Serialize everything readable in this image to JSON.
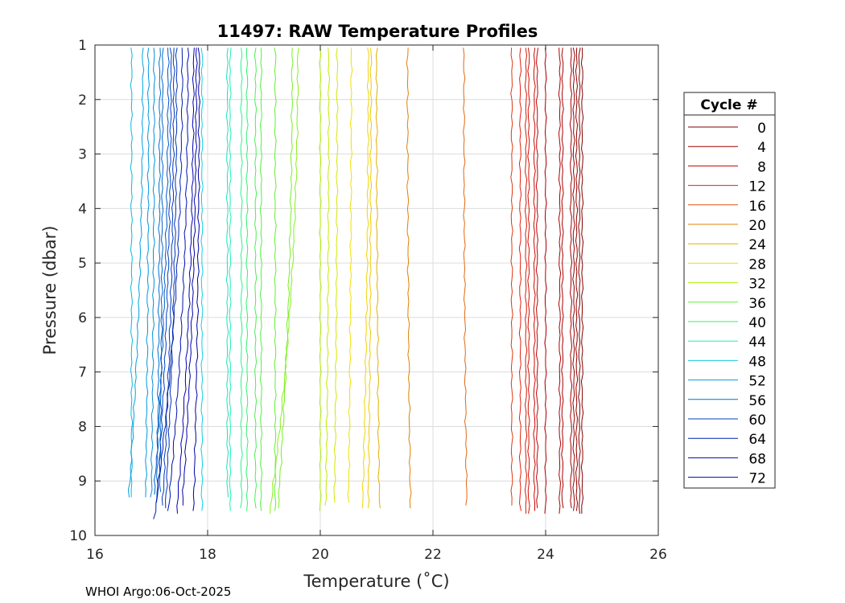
{
  "chart_data": {
    "type": "line",
    "title": "11497: RAW Temperature Profiles",
    "xlabel": "Temperature (˚C)",
    "ylabel": "Pressure (dbar)",
    "xlim": [
      16,
      26
    ],
    "ylim": [
      1,
      10
    ],
    "y_reversed": true,
    "grid": true,
    "xticks": [
      16,
      18,
      20,
      22,
      24,
      26
    ],
    "yticks": [
      1,
      2,
      3,
      4,
      5,
      6,
      7,
      8,
      9,
      10
    ],
    "legend": {
      "title": "Cycle #",
      "placement": "outside-right",
      "entries": [
        {
          "label": "0",
          "color": "#800000"
        },
        {
          "label": "4",
          "color": "#a00000"
        },
        {
          "label": "8",
          "color": "#c00000"
        },
        {
          "label": "12",
          "color": "#e02010"
        },
        {
          "label": "16",
          "color": "#e05010"
        },
        {
          "label": "20",
          "color": "#e08000"
        },
        {
          "label": "24",
          "color": "#e0b000"
        },
        {
          "label": "28",
          "color": "#f0e000"
        },
        {
          "label": "32",
          "color": "#b0f000"
        },
        {
          "label": "36",
          "color": "#60f030"
        },
        {
          "label": "40",
          "color": "#30f070"
        },
        {
          "label": "44",
          "color": "#20f0b0"
        },
        {
          "label": "48",
          "color": "#10d0e0"
        },
        {
          "label": "52",
          "color": "#00a0e0"
        },
        {
          "label": "56",
          "color": "#0070d0"
        },
        {
          "label": "60",
          "color": "#0040c0"
        },
        {
          "label": "64",
          "color": "#0020b0"
        },
        {
          "label": "68",
          "color": "#0000b0"
        },
        {
          "label": "72",
          "color": "#0000a0"
        }
      ]
    },
    "series": [
      {
        "cycle": 0,
        "color": "#800000",
        "p_top": 1.05,
        "p_bottom": 9.6,
        "t_top": 24.65,
        "t_bottom": 24.65
      },
      {
        "cycle": 1,
        "color": "#880000",
        "p_top": 1.05,
        "p_bottom": 9.6,
        "t_top": 24.6,
        "t_bottom": 24.6
      },
      {
        "cycle": 2,
        "color": "#900000",
        "p_top": 1.05,
        "p_bottom": 9.55,
        "t_top": 24.55,
        "t_bottom": 24.55
      },
      {
        "cycle": 3,
        "color": "#980000",
        "p_top": 1.05,
        "p_bottom": 9.55,
        "t_top": 24.5,
        "t_bottom": 24.5
      },
      {
        "cycle": 4,
        "color": "#a00000",
        "p_top": 1.05,
        "p_bottom": 9.5,
        "t_top": 24.45,
        "t_bottom": 24.45
      },
      {
        "cycle": 5,
        "color": "#a80000",
        "p_top": 1.05,
        "p_bottom": 9.5,
        "t_top": 24.3,
        "t_bottom": 24.3
      },
      {
        "cycle": 6,
        "color": "#b00000",
        "p_top": 1.05,
        "p_bottom": 9.6,
        "t_top": 24.25,
        "t_bottom": 24.25
      },
      {
        "cycle": 7,
        "color": "#b80000",
        "p_top": 1.05,
        "p_bottom": 9.6,
        "t_top": 24.0,
        "t_bottom": 24.0
      },
      {
        "cycle": 8,
        "color": "#c00000",
        "p_top": 1.05,
        "p_bottom": 9.5,
        "t_top": 23.85,
        "t_bottom": 23.85
      },
      {
        "cycle": 9,
        "color": "#c80800",
        "p_top": 1.05,
        "p_bottom": 9.55,
        "t_top": 23.8,
        "t_bottom": 23.8
      },
      {
        "cycle": 10,
        "color": "#d01000",
        "p_top": 1.05,
        "p_bottom": 9.6,
        "t_top": 23.7,
        "t_bottom": 23.7
      },
      {
        "cycle": 11,
        "color": "#d81800",
        "p_top": 1.05,
        "p_bottom": 9.6,
        "t_top": 23.65,
        "t_bottom": 23.65
      },
      {
        "cycle": 12,
        "color": "#e02010",
        "p_top": 1.05,
        "p_bottom": 9.55,
        "t_top": 23.55,
        "t_bottom": 23.55
      },
      {
        "cycle": 14,
        "color": "#e03810",
        "p_top": 1.05,
        "p_bottom": 9.45,
        "t_top": 23.4,
        "t_bottom": 23.4
      },
      {
        "cycle": 18,
        "color": "#e06810",
        "p_top": 1.05,
        "p_bottom": 9.45,
        "t_top": 22.55,
        "t_bottom": 22.6
      },
      {
        "cycle": 20,
        "color": "#e08000",
        "p_top": 1.05,
        "p_bottom": 9.5,
        "t_top": 21.55,
        "t_bottom": 21.6
      },
      {
        "cycle": 24,
        "color": "#e0b000",
        "p_top": 1.05,
        "p_bottom": 9.5,
        "t_top": 21.0,
        "t_bottom": 21.05
      },
      {
        "cycle": 26,
        "color": "#f0c800",
        "p_top": 1.05,
        "p_bottom": 9.5,
        "t_top": 20.9,
        "t_bottom": 20.85
      },
      {
        "cycle": 27,
        "color": "#f0d400",
        "p_top": 1.05,
        "p_bottom": 9.5,
        "t_top": 20.85,
        "t_bottom": 20.75
      },
      {
        "cycle": 28,
        "color": "#f0e000",
        "p_top": 1.05,
        "p_bottom": 9.4,
        "t_top": 20.55,
        "t_bottom": 20.5
      },
      {
        "cycle": 30,
        "color": "#d0e800",
        "p_top": 1.05,
        "p_bottom": 9.4,
        "t_top": 20.3,
        "t_bottom": 20.25
      },
      {
        "cycle": 31,
        "color": "#c0ec00",
        "p_top": 1.05,
        "p_bottom": 9.45,
        "t_top": 20.15,
        "t_bottom": 20.1
      },
      {
        "cycle": 32,
        "color": "#b0f000",
        "p_top": 1.05,
        "p_bottom": 9.55,
        "t_top": 20.0,
        "t_bottom": 20.0
      },
      {
        "cycle": 34,
        "color": "#88f018",
        "p_top": 1.05,
        "p_bottom": 9.6,
        "t_top": 19.6,
        "t_bottom": 19.1
      },
      {
        "cycle": 35,
        "color": "#74f024",
        "p_top": 1.05,
        "p_bottom": 9.5,
        "t_top": 19.5,
        "t_bottom": 19.25
      },
      {
        "cycle": 36,
        "color": "#60f030",
        "p_top": 1.05,
        "p_bottom": 9.55,
        "t_top": 19.2,
        "t_bottom": 19.2
      },
      {
        "cycle": 37,
        "color": "#50f040",
        "p_top": 1.05,
        "p_bottom": 9.55,
        "t_top": 18.95,
        "t_bottom": 18.95
      },
      {
        "cycle": 38,
        "color": "#44f050",
        "p_top": 1.05,
        "p_bottom": 9.5,
        "t_top": 18.85,
        "t_bottom": 18.85
      },
      {
        "cycle": 40,
        "color": "#30f070",
        "p_top": 1.05,
        "p_bottom": 9.55,
        "t_top": 18.7,
        "t_bottom": 18.7
      },
      {
        "cycle": 42,
        "color": "#28f090",
        "p_top": 1.05,
        "p_bottom": 9.5,
        "t_top": 18.6,
        "t_bottom": 18.6
      },
      {
        "cycle": 44,
        "color": "#20f0b0",
        "p_top": 1.05,
        "p_bottom": 9.55,
        "t_top": 18.4,
        "t_bottom": 18.4
      },
      {
        "cycle": 46,
        "color": "#18e0c8",
        "p_top": 1.05,
        "p_bottom": 9.3,
        "t_top": 18.35,
        "t_bottom": 18.35
      },
      {
        "cycle": 48,
        "color": "#10d0e0",
        "p_top": 1.05,
        "p_bottom": 9.55,
        "t_top": 17.9,
        "t_bottom": 17.9
      },
      {
        "cycle": 50,
        "color": "#08b8e0",
        "p_top": 1.05,
        "p_bottom": 9.3,
        "t_top": 16.65,
        "t_bottom": 16.65
      },
      {
        "cycle": 52,
        "color": "#00a0e0",
        "p_top": 1.05,
        "p_bottom": 9.3,
        "t_top": 16.85,
        "t_bottom": 16.6
      },
      {
        "cycle": 53,
        "color": "#0098e0",
        "p_top": 1.05,
        "p_bottom": 9.3,
        "t_top": 16.95,
        "t_bottom": 16.9
      },
      {
        "cycle": 54,
        "color": "#0090d8",
        "p_top": 1.05,
        "p_bottom": 9.3,
        "t_top": 17.05,
        "t_bottom": 17.0
      },
      {
        "cycle": 56,
        "color": "#0070d0",
        "p_top": 1.05,
        "p_bottom": 9.35,
        "t_top": 17.15,
        "t_bottom": 17.1
      },
      {
        "cycle": 57,
        "color": "#0064cc",
        "p_top": 1.05,
        "p_bottom": 9.2,
        "t_top": 17.2,
        "t_bottom": 17.15
      },
      {
        "cycle": 58,
        "color": "#0058c8",
        "p_top": 1.05,
        "p_bottom": 9.25,
        "t_top": 17.3,
        "t_bottom": 17.05
      },
      {
        "cycle": 60,
        "color": "#0040c0",
        "p_top": 1.05,
        "p_bottom": 9.4,
        "t_top": 17.35,
        "t_bottom": 17.1
      },
      {
        "cycle": 61,
        "color": "#0038bc",
        "p_top": 1.05,
        "p_bottom": 9.45,
        "t_top": 17.4,
        "t_bottom": 17.2
      },
      {
        "cycle": 62,
        "color": "#0030b8",
        "p_top": 1.05,
        "p_bottom": 9.5,
        "t_top": 17.45,
        "t_bottom": 17.25
      },
      {
        "cycle": 64,
        "color": "#0020b0",
        "p_top": 1.05,
        "p_bottom": 9.7,
        "t_top": 17.55,
        "t_bottom": 17.05
      },
      {
        "cycle": 66,
        "color": "#0010b0",
        "p_top": 1.05,
        "p_bottom": 9.55,
        "t_top": 17.65,
        "t_bottom": 17.3
      },
      {
        "cycle": 68,
        "color": "#0000b0",
        "p_top": 1.05,
        "p_bottom": 9.6,
        "t_top": 17.75,
        "t_bottom": 17.45
      },
      {
        "cycle": 70,
        "color": "#0000a8",
        "p_top": 1.05,
        "p_bottom": 9.45,
        "t_top": 17.8,
        "t_bottom": 17.55
      },
      {
        "cycle": 72,
        "color": "#0000a0",
        "p_top": 1.05,
        "p_bottom": 9.55,
        "t_top": 17.85,
        "t_bottom": 17.75
      }
    ]
  },
  "footer": {
    "text": "WHOI Argo:06-Oct-2025"
  }
}
